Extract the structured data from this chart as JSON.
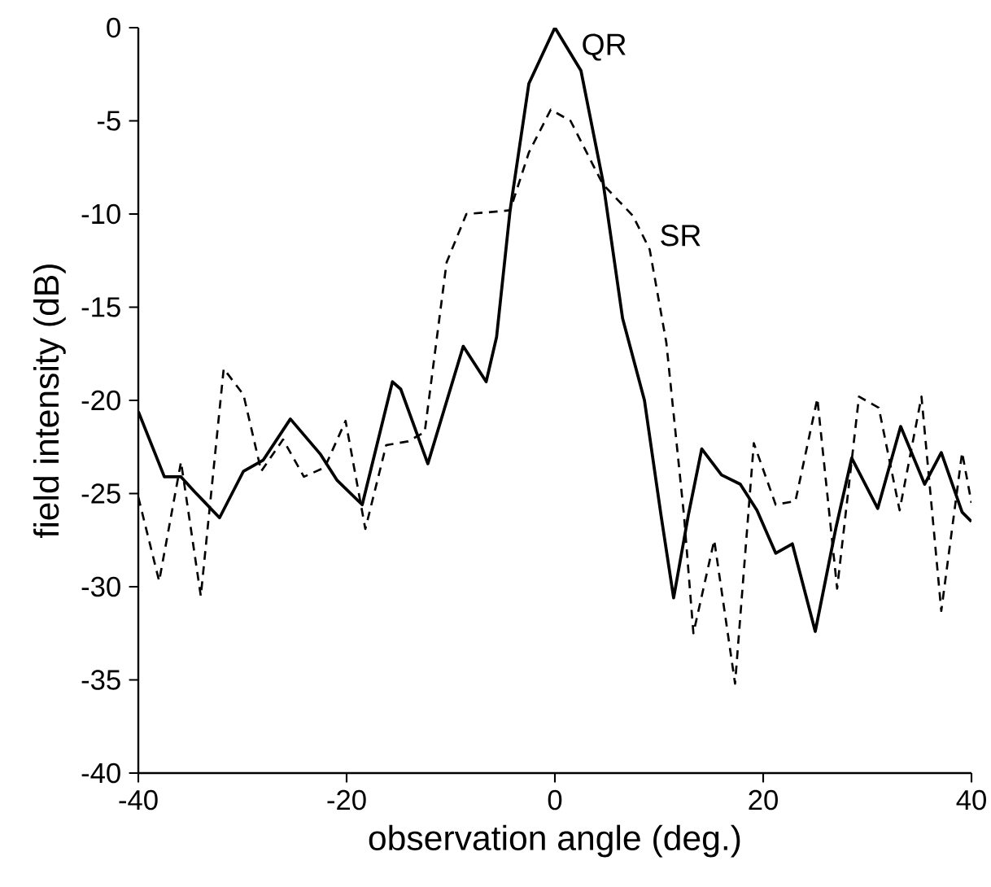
{
  "chart_data": {
    "type": "line",
    "xlabel": "observation angle (deg.)",
    "ylabel": "field intensity (dB)",
    "xlim": [
      -40,
      40
    ],
    "ylim": [
      -40,
      0
    ],
    "xticks": [
      -40,
      -20,
      0,
      20,
      40
    ],
    "yticks": [
      -40,
      -35,
      -30,
      -25,
      -20,
      -15,
      -10,
      -5,
      0
    ],
    "marker": "none",
    "annotations": [
      {
        "text": "QR",
        "x": 0,
        "y": 0
      },
      {
        "text": "SR",
        "x": 7.5,
        "y": -10.1
      }
    ],
    "series": [
      {
        "color": "#000000",
        "line_style": "solid",
        "x": [
          -40,
          -37.5,
          -35.9,
          -34.6,
          -32.2,
          -29.9,
          -28.0,
          -25.4,
          -22.5,
          -20.9,
          -18.5,
          -15.6,
          -14.8,
          -12.2,
          -8.8,
          -6.6,
          -5.6,
          -4.3,
          -2.5,
          0,
          2.5,
          4.6,
          6.5,
          8.6,
          10.2,
          11.4,
          12.8,
          14.1,
          16.0,
          17.8,
          19.4,
          21.2,
          22.8,
          25.0,
          27.0,
          28.5,
          31.0,
          33.2,
          35.5,
          37.1,
          39.1,
          40
        ],
        "values": [
          -20.6,
          -24.1,
          -24.1,
          -24.9,
          -26.3,
          -23.8,
          -23.2,
          -21.0,
          -22.9,
          -24.3,
          -25.6,
          -19.0,
          -19.4,
          -23.4,
          -17.1,
          -19.0,
          -16.6,
          -9.8,
          -3.0,
          0,
          -2.3,
          -8.2,
          -15.6,
          -20.0,
          -26.2,
          -30.6,
          -26.2,
          -22.6,
          -24.0,
          -24.5,
          -25.9,
          -28.2,
          -27.7,
          -32.4,
          -26.8,
          -23.1,
          -25.8,
          -21.4,
          -24.5,
          -22.8,
          -26.0,
          -26.5
        ]
      },
      {
        "color": "#000000",
        "line_style": "dashed",
        "x": [
          -40,
          -38.0,
          -35.9,
          -34.0,
          -31.8,
          -29.9,
          -28.2,
          -26.1,
          -24.1,
          -22.1,
          -20.1,
          -18.2,
          -16.2,
          -14.1,
          -12.5,
          -10.4,
          -8.5,
          -6.2,
          -4.3,
          -2.5,
          -0.4,
          1.5,
          4.6,
          7.5,
          9.1,
          10.7,
          12.4,
          13.3,
          15.3,
          17.3,
          19.1,
          21.2,
          23.1,
          25.2,
          27.1,
          29.2,
          31.1,
          33.1,
          35.2,
          37.1,
          39.1,
          40
        ],
        "values": [
          -25.2,
          -29.7,
          -23.3,
          -30.5,
          -18.3,
          -19.7,
          -23.8,
          -22.1,
          -24.1,
          -23.6,
          -21.1,
          -26.9,
          -22.4,
          -22.2,
          -21.7,
          -12.6,
          -10.0,
          -9.9,
          -9.8,
          -6.7,
          -4.4,
          -5.0,
          -8.4,
          -10.1,
          -11.9,
          -16.9,
          -26.2,
          -32.5,
          -27.5,
          -35.2,
          -22.3,
          -25.6,
          -25.4,
          -19.9,
          -30.1,
          -19.8,
          -20.4,
          -25.9,
          -19.8,
          -31.3,
          -22.8,
          -25.5
        ]
      }
    ]
  }
}
